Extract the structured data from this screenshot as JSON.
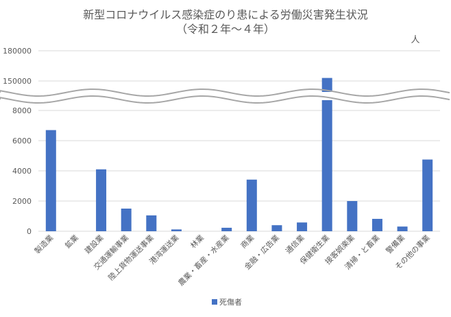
{
  "chart_data": {
    "type": "bar",
    "title": "新型コロナウイルス感染症のり患による労働災害発生状況",
    "subtitle": "（令和２年～４年）",
    "unit": "人",
    "categories": [
      "製造業",
      "鉱業",
      "建設業",
      "交通運輸事業",
      "陸上貨物運送事業",
      "港湾運送業",
      "林業",
      "農業・畜産・水産業",
      "商業",
      "金融・広告業",
      "通信業",
      "保健衛生業",
      "接客娯楽業",
      "清掃・と畜業",
      "警備業",
      "その他の事業"
    ],
    "series": [
      {
        "name": "死傷者",
        "values": [
          6700,
          0,
          4100,
          1500,
          1050,
          120,
          0,
          230,
          3420,
          400,
          580,
          153000,
          2000,
          820,
          310,
          4750
        ]
      }
    ],
    "y_ticks": [
      "0",
      "2000",
      "4000",
      "6000",
      "8000",
      "150000",
      "180000"
    ],
    "ylim_lower": [
      0,
      9000
    ],
    "ylim_upper": [
      145000,
      180000
    ],
    "axis_break": true,
    "grid": true,
    "legend": "bottom",
    "colors": {
      "bar": "#4472C4",
      "grid": "#D9D9D9",
      "text": "#595959",
      "break": "#A6A6A6"
    }
  }
}
